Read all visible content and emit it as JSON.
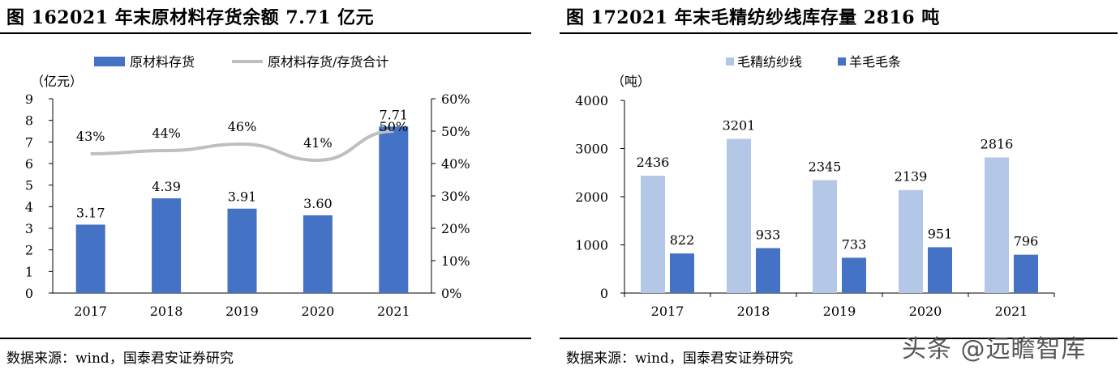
{
  "left": {
    "title": "图 162021 年末原材料存货余额 7.71 亿元",
    "source": "数据来源：wind，国泰君安证券研究",
    "chart_data": {
      "type": "bar",
      "categories": [
        "2017",
        "2018",
        "2019",
        "2020",
        "2021"
      ],
      "unit_label": "（亿元）",
      "ylim": [
        0,
        9
      ],
      "yticks": [
        "0",
        "1",
        "2",
        "3",
        "4",
        "5",
        "6",
        "7",
        "8",
        "9"
      ],
      "y2lim": [
        0,
        60
      ],
      "y2ticks": [
        "0%",
        "10%",
        "20%",
        "30%",
        "40%",
        "50%",
        "60%"
      ],
      "legend": [
        "原材料存货",
        "原材料存货/存货合计"
      ],
      "series": [
        {
          "name": "原材料存货",
          "type": "bar",
          "values": [
            3.17,
            4.39,
            3.91,
            3.6,
            7.71
          ],
          "labels": [
            "3.17",
            "4.39",
            "3.91",
            "3.60",
            "7.71"
          ],
          "color": "#4472C4"
        },
        {
          "name": "原材料存货/存货合计",
          "type": "line",
          "axis": "right",
          "values": [
            43,
            44,
            46,
            41,
            50
          ],
          "labels": [
            "43%",
            "44%",
            "46%",
            "41%",
            "50%"
          ],
          "color": "#BFBFBF"
        }
      ]
    }
  },
  "right": {
    "title": "图 172021 年末毛精纺纱线库存量 2816 吨",
    "source": "数据来源：wind，国泰君安证券研究",
    "chart_data": {
      "type": "bar",
      "categories": [
        "2017",
        "2018",
        "2019",
        "2020",
        "2021"
      ],
      "unit_label": "（吨）",
      "ylim": [
        0,
        4000
      ],
      "yticks": [
        "0",
        "1000",
        "2000",
        "3000",
        "4000"
      ],
      "legend": [
        "毛精纺纱线",
        "羊毛毛条"
      ],
      "series": [
        {
          "name": "毛精纺纱线",
          "values": [
            2436,
            3201,
            2345,
            2139,
            2816
          ],
          "labels": [
            "2436",
            "3201",
            "2345",
            "2139",
            "2816"
          ],
          "color": "#B4C7E7"
        },
        {
          "name": "羊毛毛条",
          "values": [
            822,
            933,
            733,
            951,
            796
          ],
          "labels": [
            "822",
            "933",
            "733",
            "951",
            "796"
          ],
          "color": "#4472C4"
        }
      ]
    }
  },
  "watermark": "头条 @远瞻智库"
}
